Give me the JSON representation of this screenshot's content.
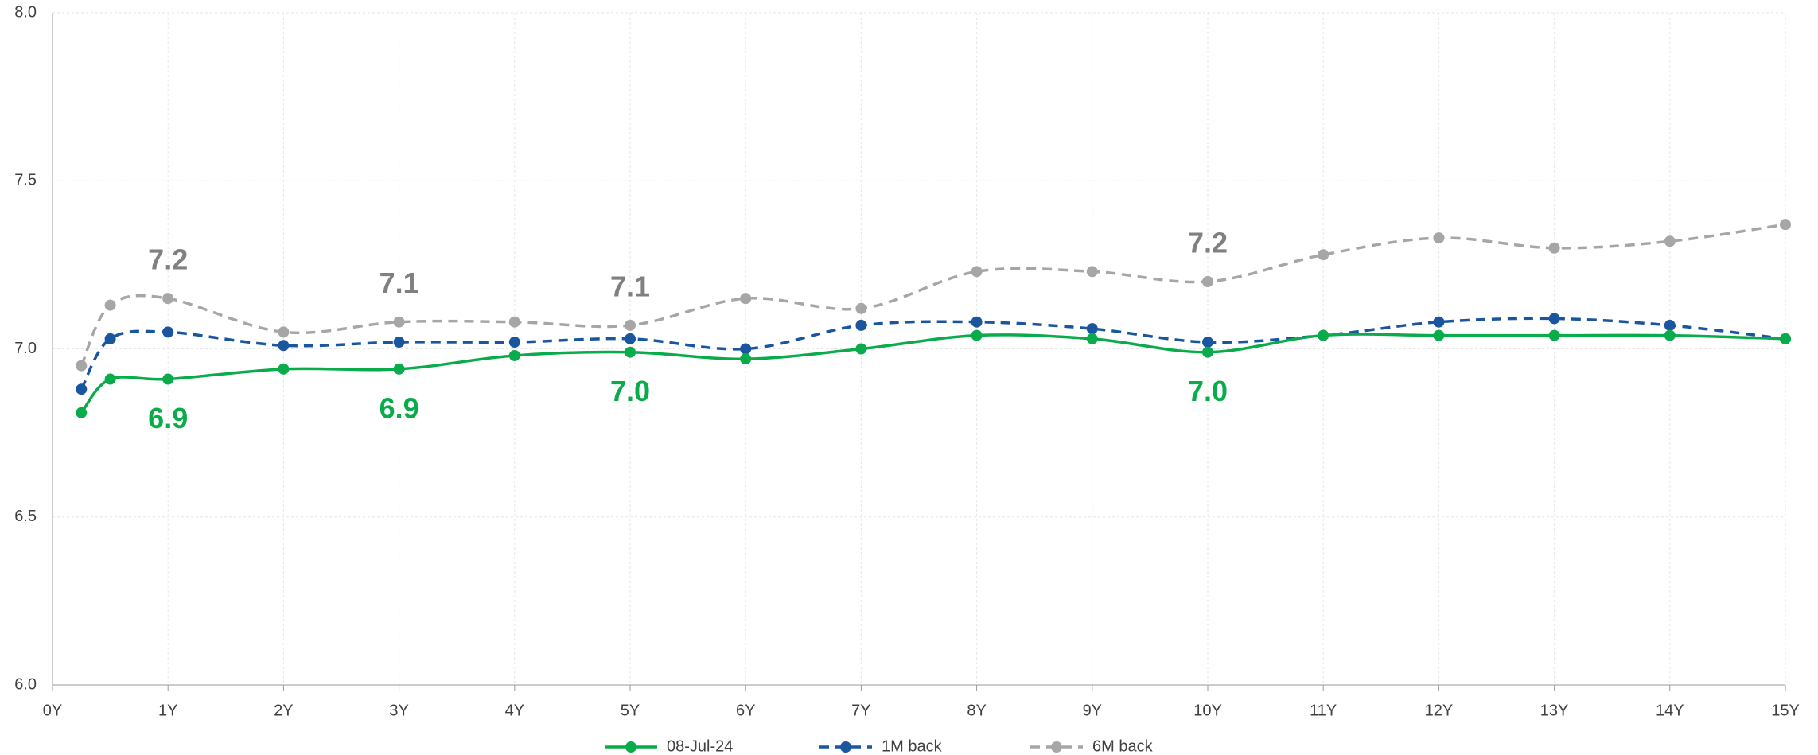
{
  "chart_data": {
    "type": "line",
    "x": [
      0.25,
      0.5,
      1,
      2,
      3,
      4,
      5,
      6,
      7,
      8,
      9,
      10,
      11,
      12,
      13,
      14,
      15
    ],
    "series": [
      {
        "name": "08-Jul-24",
        "color": "#0aab4a",
        "dash": false,
        "values": [
          6.81,
          6.91,
          6.91,
          6.94,
          6.94,
          6.98,
          6.99,
          6.97,
          7.0,
          7.04,
          7.03,
          6.99,
          7.04,
          7.04,
          7.04,
          7.04,
          7.03
        ],
        "value_labels": [
          null,
          null,
          "6.9",
          null,
          "6.9",
          null,
          "7.0",
          null,
          null,
          null,
          null,
          "7.0",
          null,
          null,
          null,
          null,
          null
        ]
      },
      {
        "name": "1M back",
        "color": "#1a56a0",
        "dash": true,
        "values": [
          6.88,
          7.03,
          7.05,
          7.01,
          7.02,
          7.02,
          7.03,
          7.0,
          7.07,
          7.08,
          7.06,
          7.02,
          7.04,
          7.08,
          7.09,
          7.07,
          7.03
        ]
      },
      {
        "name": "6M back",
        "color": "#a6a6a6",
        "dash": true,
        "values": [
          6.95,
          7.13,
          7.15,
          7.05,
          7.08,
          7.08,
          7.07,
          7.15,
          7.12,
          7.23,
          7.23,
          7.2,
          7.28,
          7.33,
          7.3,
          7.32,
          7.37
        ],
        "value_labels": [
          null,
          null,
          "7.2",
          null,
          "7.1",
          null,
          "7.1",
          null,
          null,
          null,
          null,
          "7.2",
          null,
          null,
          null,
          null,
          null
        ]
      }
    ],
    "xlim": [
      0,
      15
    ],
    "xticks": [
      {
        "value": 0,
        "label": "0Y"
      },
      {
        "value": 1,
        "label": "1Y"
      },
      {
        "value": 2,
        "label": "2Y"
      },
      {
        "value": 3,
        "label": "3Y"
      },
      {
        "value": 4,
        "label": "4Y"
      },
      {
        "value": 5,
        "label": "5Y"
      },
      {
        "value": 6,
        "label": "6Y"
      },
      {
        "value": 7,
        "label": "7Y"
      },
      {
        "value": 8,
        "label": "8Y"
      },
      {
        "value": 9,
        "label": "9Y"
      },
      {
        "value": 10,
        "label": "10Y"
      },
      {
        "value": 11,
        "label": "11Y"
      },
      {
        "value": 12,
        "label": "12Y"
      },
      {
        "value": 13,
        "label": "13Y"
      },
      {
        "value": 14,
        "label": "14Y"
      },
      {
        "value": 15,
        "label": "15Y"
      }
    ],
    "ylim": [
      6.0,
      8.0
    ],
    "yticks": [
      {
        "value": 6.0,
        "label": "6.0"
      },
      {
        "value": 6.5,
        "label": "6.5"
      },
      {
        "value": 7.0,
        "label": "7.0"
      },
      {
        "value": 7.5,
        "label": "7.5"
      },
      {
        "value": 8.0,
        "label": "8.0"
      }
    ],
    "grid": true,
    "legend": "bottom"
  }
}
